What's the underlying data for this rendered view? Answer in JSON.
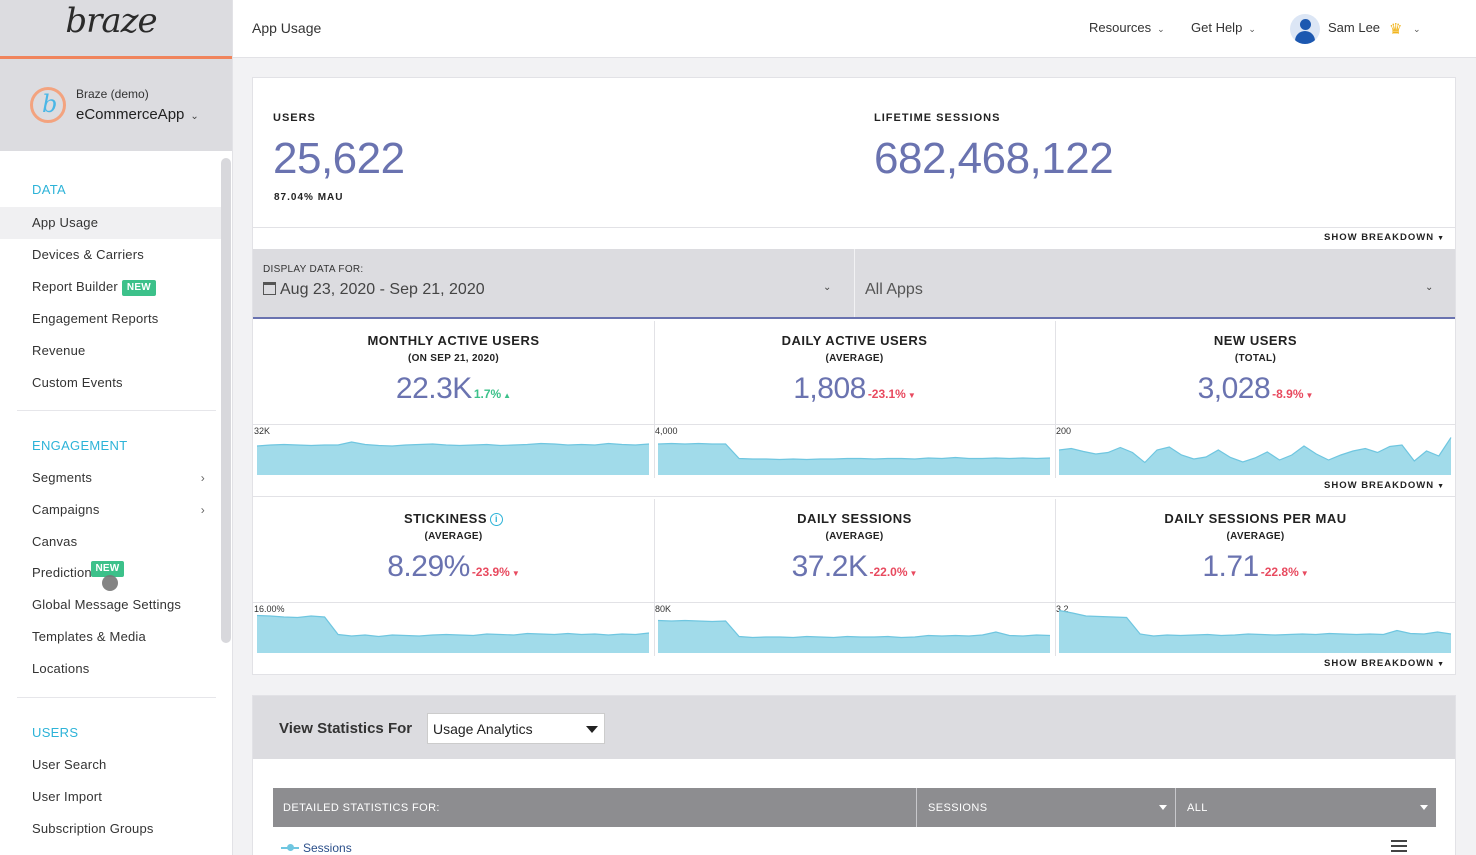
{
  "sidebar": {
    "logo": "braze",
    "workspace": {
      "org": "Braze (demo)",
      "app": "eCommerceApp"
    },
    "sections": [
      {
        "title": "DATA",
        "items": [
          {
            "label": "App Usage",
            "active": true
          },
          {
            "label": "Devices & Carriers"
          },
          {
            "label": "Report Builder",
            "badge": "NEW"
          },
          {
            "label": "Engagement Reports"
          },
          {
            "label": "Revenue"
          },
          {
            "label": "Custom Events"
          }
        ]
      },
      {
        "title": "ENGAGEMENT",
        "items": [
          {
            "label": "Segments",
            "arrow": true
          },
          {
            "label": "Campaigns",
            "arrow": true
          },
          {
            "label": "Canvas"
          },
          {
            "label": "Predictions",
            "badge": "NEW"
          },
          {
            "label": "Global Message Settings"
          },
          {
            "label": "Templates & Media"
          },
          {
            "label": "Locations"
          }
        ]
      },
      {
        "title": "USERS",
        "items": [
          {
            "label": "User Search"
          },
          {
            "label": "User Import"
          },
          {
            "label": "Subscription Groups"
          }
        ]
      }
    ]
  },
  "header": {
    "page_title": "App Usage",
    "resources": "Resources",
    "get_help": "Get Help",
    "user_name": "Sam Lee"
  },
  "summary": {
    "users_label": "USERS",
    "users_value": "25,622",
    "users_mau": "87.04% MAU",
    "sessions_label": "LIFETIME SESSIONS",
    "sessions_value": "682,468,122",
    "show_breakdown": "SHOW BREAKDOWN"
  },
  "filters": {
    "display_label": "DISPLAY DATA FOR:",
    "date_range": "Aug 23, 2020 - Sep 21, 2020",
    "apps": "All Apps"
  },
  "metrics": [
    {
      "title": "MONTHLY ACTIVE USERS",
      "sub": "(ON SEP 21, 2020)",
      "value": "22.3K",
      "delta": "1.7%",
      "direction": "up",
      "spark_max": "32K",
      "series": [
        0.58,
        0.6,
        0.61,
        0.6,
        0.59,
        0.6,
        0.6,
        0.66,
        0.61,
        0.59,
        0.58,
        0.6,
        0.61,
        0.62,
        0.6,
        0.59,
        0.6,
        0.61,
        0.59,
        0.6,
        0.61,
        0.63,
        0.62,
        0.6,
        0.61,
        0.6,
        0.63,
        0.61,
        0.6,
        0.62
      ]
    },
    {
      "title": "DAILY ACTIVE USERS",
      "sub": "(AVERAGE)",
      "value": "1,808",
      "delta": "-23.1%",
      "direction": "down",
      "spark_max": "4,000",
      "series": [
        0.62,
        0.63,
        0.62,
        0.63,
        0.62,
        0.62,
        0.33,
        0.32,
        0.32,
        0.31,
        0.32,
        0.31,
        0.32,
        0.32,
        0.33,
        0.33,
        0.32,
        0.33,
        0.33,
        0.32,
        0.34,
        0.33,
        0.35,
        0.33,
        0.33,
        0.34,
        0.33,
        0.34,
        0.33,
        0.34
      ]
    },
    {
      "title": "NEW USERS",
      "sub": "(TOTAL)",
      "value": "3,028",
      "delta": "-8.9%",
      "direction": "down",
      "spark_max": "200",
      "series": [
        0.5,
        0.53,
        0.47,
        0.42,
        0.45,
        0.55,
        0.45,
        0.25,
        0.5,
        0.56,
        0.4,
        0.32,
        0.36,
        0.5,
        0.35,
        0.26,
        0.34,
        0.46,
        0.3,
        0.4,
        0.58,
        0.42,
        0.3,
        0.4,
        0.48,
        0.53,
        0.45,
        0.57,
        0.6,
        0.28,
        0.48,
        0.38,
        0.75
      ]
    },
    {
      "title": "STICKINESS",
      "sub": "(AVERAGE)",
      "value": "8.29%",
      "delta": "-23.9%",
      "direction": "down",
      "spark_max": "16.00%",
      "info": true,
      "series": [
        0.75,
        0.74,
        0.72,
        0.71,
        0.74,
        0.72,
        0.37,
        0.34,
        0.36,
        0.33,
        0.36,
        0.35,
        0.34,
        0.36,
        0.37,
        0.36,
        0.35,
        0.38,
        0.37,
        0.36,
        0.39,
        0.38,
        0.37,
        0.39,
        0.37,
        0.38,
        0.36,
        0.38,
        0.37,
        0.4
      ]
    },
    {
      "title": "DAILY SESSIONS",
      "sub": "(AVERAGE)",
      "value": "37.2K",
      "delta": "-22.0%",
      "direction": "down",
      "spark_max": "80K",
      "series": [
        0.65,
        0.64,
        0.65,
        0.64,
        0.63,
        0.64,
        0.33,
        0.31,
        0.32,
        0.32,
        0.31,
        0.33,
        0.32,
        0.31,
        0.33,
        0.32,
        0.32,
        0.33,
        0.31,
        0.32,
        0.35,
        0.34,
        0.35,
        0.34,
        0.36,
        0.42,
        0.35,
        0.34,
        0.36,
        0.35
      ]
    },
    {
      "title": "DAILY SESSIONS PER MAU",
      "sub": "(AVERAGE)",
      "value": "1.71",
      "delta": "-22.8%",
      "direction": "down",
      "spark_max": "3.2",
      "series": [
        0.85,
        0.8,
        0.74,
        0.73,
        0.72,
        0.71,
        0.38,
        0.34,
        0.36,
        0.35,
        0.36,
        0.37,
        0.35,
        0.36,
        0.38,
        0.37,
        0.36,
        0.37,
        0.38,
        0.37,
        0.39,
        0.38,
        0.37,
        0.38,
        0.37,
        0.45,
        0.39,
        0.38,
        0.42,
        0.38
      ]
    }
  ],
  "bottom": {
    "view_label": "View Statistics For",
    "view_select": "Usage Analytics",
    "detail_label": "DETAILED STATISTICS FOR:",
    "sessions_select": "SESSIONS",
    "all_select": "ALL",
    "legend": "Sessions"
  },
  "colors": {
    "accent": "#6a73b0",
    "spark_fill": "#a1dbea",
    "spark_line": "#6fc6e0",
    "section": "#2db3d8",
    "badge": "#3cc18a",
    "down": "#e84a5f",
    "up": "#3cc18a"
  }
}
